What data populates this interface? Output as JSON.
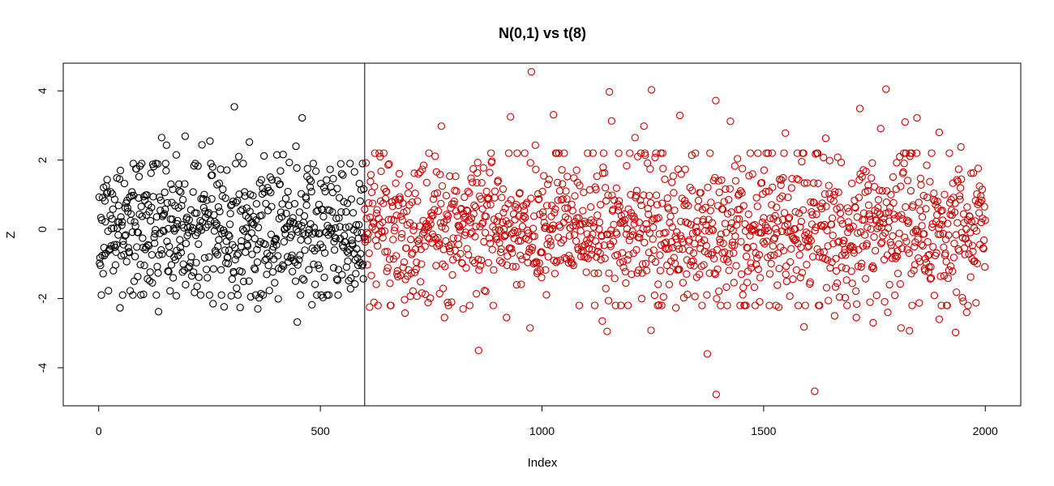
{
  "chart_data": {
    "type": "scatter",
    "title": "N(0,1) vs t(8)",
    "xlabel": "Index",
    "ylabel": "Z",
    "xlim": [
      -80,
      2080
    ],
    "ylim": [
      -5.1,
      4.8
    ],
    "x_ticks": [
      0,
      500,
      1000,
      1500,
      2000
    ],
    "y_ticks": [
      -4,
      -2,
      0,
      2,
      4
    ],
    "grid": false,
    "legend": "none",
    "vline": 600,
    "series": [
      {
        "color": "#000000",
        "x_range": [
          1,
          599
        ],
        "distribution": "standard normal",
        "points": [
          [
            17,
            1.25
          ],
          [
            49,
            1.7
          ],
          [
            75,
            1.08
          ],
          [
            84,
            1.75
          ],
          [
            109,
            0.99
          ],
          [
            118,
            1.62
          ],
          [
            133,
            1.89
          ],
          [
            142,
            2.65
          ],
          [
            153,
            2.43
          ],
          [
            175,
            2.15
          ],
          [
            180,
            0.62
          ],
          [
            195,
            2.69
          ],
          [
            224,
            1.83
          ],
          [
            233,
            2.44
          ],
          [
            251,
            2.55
          ],
          [
            257,
            1.8
          ],
          [
            289,
            1.71
          ],
          [
            306,
            3.54
          ],
          [
            316,
            2.1
          ],
          [
            340,
            2.52
          ],
          [
            373,
            2.12
          ],
          [
            391,
            1.43
          ],
          [
            402,
            2.15
          ],
          [
            416,
            2.16
          ],
          [
            430,
            1.93
          ],
          [
            445,
            2.4
          ],
          [
            459,
            3.22
          ],
          [
            471,
            1.75
          ],
          [
            490,
            1.68
          ],
          [
            48,
            -2.27
          ],
          [
            80,
            -1.5
          ],
          [
            101,
            -1.88
          ],
          [
            135,
            -2.38
          ],
          [
            161,
            -1.78
          ],
          [
            175,
            -1.92
          ],
          [
            196,
            -1.6
          ],
          [
            222,
            -1.65
          ],
          [
            258,
            -2.15
          ],
          [
            283,
            -2.24
          ],
          [
            299,
            -1.92
          ],
          [
            319,
            -2.26
          ],
          [
            343,
            -1.95
          ],
          [
            359,
            -2.3
          ],
          [
            362,
            -1.98
          ],
          [
            385,
            -1.77
          ],
          [
            405,
            -2.01
          ],
          [
            448,
            -2.68
          ],
          [
            481,
            -2.18
          ],
          [
            506,
            -1.97
          ]
        ]
      },
      {
        "color": "#cc0000",
        "x_range": [
          600,
          2000
        ],
        "distribution": "t(8)",
        "points": [
          [
            976,
            4.55
          ],
          [
            1247,
            4.03
          ],
          [
            1776,
            4.05
          ],
          [
            1152,
            3.97
          ],
          [
            1392,
            3.72
          ],
          [
            929,
            3.25
          ],
          [
            1026,
            3.31
          ],
          [
            1157,
            3.13
          ],
          [
            1311,
            3.29
          ],
          [
            1717,
            3.49
          ],
          [
            1425,
            3.12
          ],
          [
            1764,
            2.91
          ],
          [
            1819,
            3.1
          ],
          [
            1846,
            3.22
          ],
          [
            1896,
            2.8
          ],
          [
            985,
            2.43
          ],
          [
            1549,
            2.78
          ],
          [
            1640,
            2.63
          ],
          [
            1945,
            2.38
          ],
          [
            773,
            2.98
          ],
          [
            1230,
            2.98
          ],
          [
            1210,
            2.65
          ],
          [
            857,
            -3.5
          ],
          [
            1373,
            -3.6
          ],
          [
            1393,
            -4.77
          ],
          [
            1615,
            -4.68
          ],
          [
            1136,
            -2.65
          ],
          [
            1147,
            -2.95
          ],
          [
            1246,
            -2.92
          ],
          [
            1591,
            -2.82
          ],
          [
            1747,
            -2.7
          ],
          [
            1829,
            -2.93
          ],
          [
            1933,
            -2.98
          ],
          [
            973,
            -2.85
          ],
          [
            822,
            -2.3
          ],
          [
            691,
            -2.42
          ],
          [
            1084,
            -2.2
          ],
          [
            1302,
            -2.27
          ],
          [
            1534,
            -2.25
          ],
          [
            1709,
            -2.55
          ],
          [
            1780,
            -2.4
          ],
          [
            1896,
            -2.6
          ],
          [
            611,
            -2.25
          ],
          [
            780,
            -2.55
          ],
          [
            920,
            -2.55
          ],
          [
            1460,
            -2.2
          ],
          [
            1660,
            -2.5
          ],
          [
            1810,
            -2.85
          ],
          [
            1958,
            -2.4
          ]
        ]
      }
    ]
  }
}
